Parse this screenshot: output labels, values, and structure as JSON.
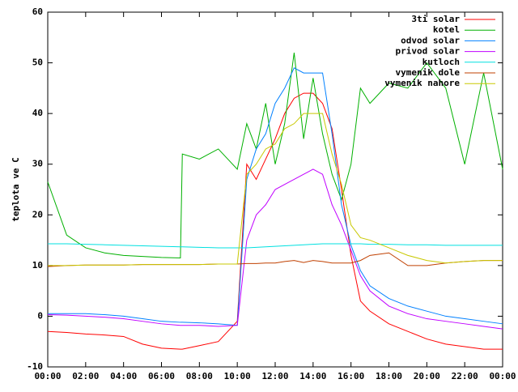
{
  "chart_data": {
    "type": "line",
    "y_label": "teplota ve C",
    "x": [
      0,
      1,
      2,
      3,
      4,
      5,
      6,
      7,
      7.1,
      8,
      9,
      10,
      10.5,
      11,
      11.5,
      12,
      12.5,
      13,
      13.5,
      14,
      14.5,
      15,
      15.5,
      16,
      16.5,
      17,
      18,
      19,
      20,
      21,
      22,
      23,
      24
    ],
    "xlim": [
      0,
      24
    ],
    "xticks": [
      {
        "value": 0,
        "label": "00:00"
      },
      {
        "value": 2,
        "label": "02:00"
      },
      {
        "value": 4,
        "label": "04:00"
      },
      {
        "value": 6,
        "label": "06:00"
      },
      {
        "value": 8,
        "label": "08:00"
      },
      {
        "value": 10,
        "label": "10:00"
      },
      {
        "value": 12,
        "label": "12:00"
      },
      {
        "value": 14,
        "label": "14:00"
      },
      {
        "value": 16,
        "label": "16:00"
      },
      {
        "value": 18,
        "label": "18:00"
      },
      {
        "value": 20,
        "label": "20:00"
      },
      {
        "value": 22,
        "label": "22:00"
      },
      {
        "value": 24,
        "label": "00:00"
      }
    ],
    "ylim": [
      -10,
      60
    ],
    "yticks": [
      -10,
      0,
      10,
      20,
      30,
      40,
      50,
      60
    ],
    "legend": "top-right",
    "series": [
      {
        "name": "3ti solar",
        "color": "#ff0000",
        "values": [
          -3,
          -3.2,
          -3.5,
          -3.7,
          -4,
          -5.5,
          -6.3,
          -6.5,
          -6.5,
          -5.8,
          -5,
          -1,
          30,
          27,
          31,
          35,
          40,
          43,
          44,
          44,
          42,
          37,
          25,
          12,
          3,
          1,
          -1.5,
          -3,
          -4.5,
          -5.5,
          -6,
          -6.5,
          -6.5
        ]
      },
      {
        "name": "kotel",
        "color": "#00b000",
        "values": [
          26.5,
          16,
          13.5,
          12.5,
          12,
          11.8,
          11.6,
          11.5,
          32,
          31,
          33,
          29,
          38,
          33,
          42,
          30,
          38,
          52,
          35,
          47,
          36,
          28,
          23,
          30,
          45,
          42,
          46,
          45,
          50,
          45,
          30,
          48,
          29
        ]
      },
      {
        "name": "odvod solar",
        "color": "#0080ff",
        "values": [
          0.5,
          0.5,
          0.5,
          0.3,
          0,
          -0.5,
          -1,
          -1.2,
          -1.2,
          -1.3,
          -1.5,
          -1.8,
          27,
          33,
          36,
          42,
          45,
          49,
          48,
          48,
          48,
          36,
          22,
          14,
          9,
          6,
          3.5,
          2,
          1,
          0,
          -0.5,
          -1,
          -1.5
        ]
      },
      {
        "name": "privod solar",
        "color": "#c000ff",
        "values": [
          0.3,
          0.2,
          0,
          -0.2,
          -0.5,
          -1,
          -1.5,
          -1.8,
          -1.8,
          -1.8,
          -2,
          -1.8,
          15,
          20,
          22,
          25,
          26,
          27,
          28,
          29,
          28,
          22,
          18,
          13,
          8,
          5,
          2,
          0.5,
          -0.5,
          -1,
          -1.5,
          -2,
          -2.5
        ]
      },
      {
        "name": "kutloch",
        "color": "#00e0e0",
        "values": [
          14.3,
          14.3,
          14.2,
          14.1,
          14,
          13.9,
          13.8,
          13.7,
          13.7,
          13.6,
          13.5,
          13.5,
          13.5,
          13.6,
          13.7,
          13.8,
          13.9,
          14,
          14.1,
          14.2,
          14.3,
          14.3,
          14.3,
          14.3,
          14.3,
          14.2,
          14.2,
          14.1,
          14.1,
          14,
          14,
          14,
          14
        ]
      },
      {
        "name": "vymenik dole",
        "color": "#c04000",
        "values": [
          9.8,
          10,
          10.1,
          10.1,
          10.1,
          10.2,
          10.2,
          10.2,
          10.2,
          10.2,
          10.3,
          10.3,
          10.4,
          10.4,
          10.5,
          10.5,
          10.8,
          11,
          10.6,
          11,
          10.8,
          10.5,
          10.5,
          10.5,
          11,
          12,
          12.5,
          10,
          10,
          10.5,
          10.8,
          11,
          11
        ]
      },
      {
        "name": "vymenik nahore",
        "color": "#c8c800",
        "values": [
          10,
          10,
          10.1,
          10.1,
          10.1,
          10.2,
          10.2,
          10.2,
          10.2,
          10.2,
          10.3,
          10.3,
          28,
          30,
          33,
          34,
          37,
          38,
          40,
          40,
          40,
          32,
          26,
          18,
          15.5,
          15,
          13.5,
          12,
          11,
          10.5,
          10.8,
          11,
          11
        ]
      }
    ]
  }
}
